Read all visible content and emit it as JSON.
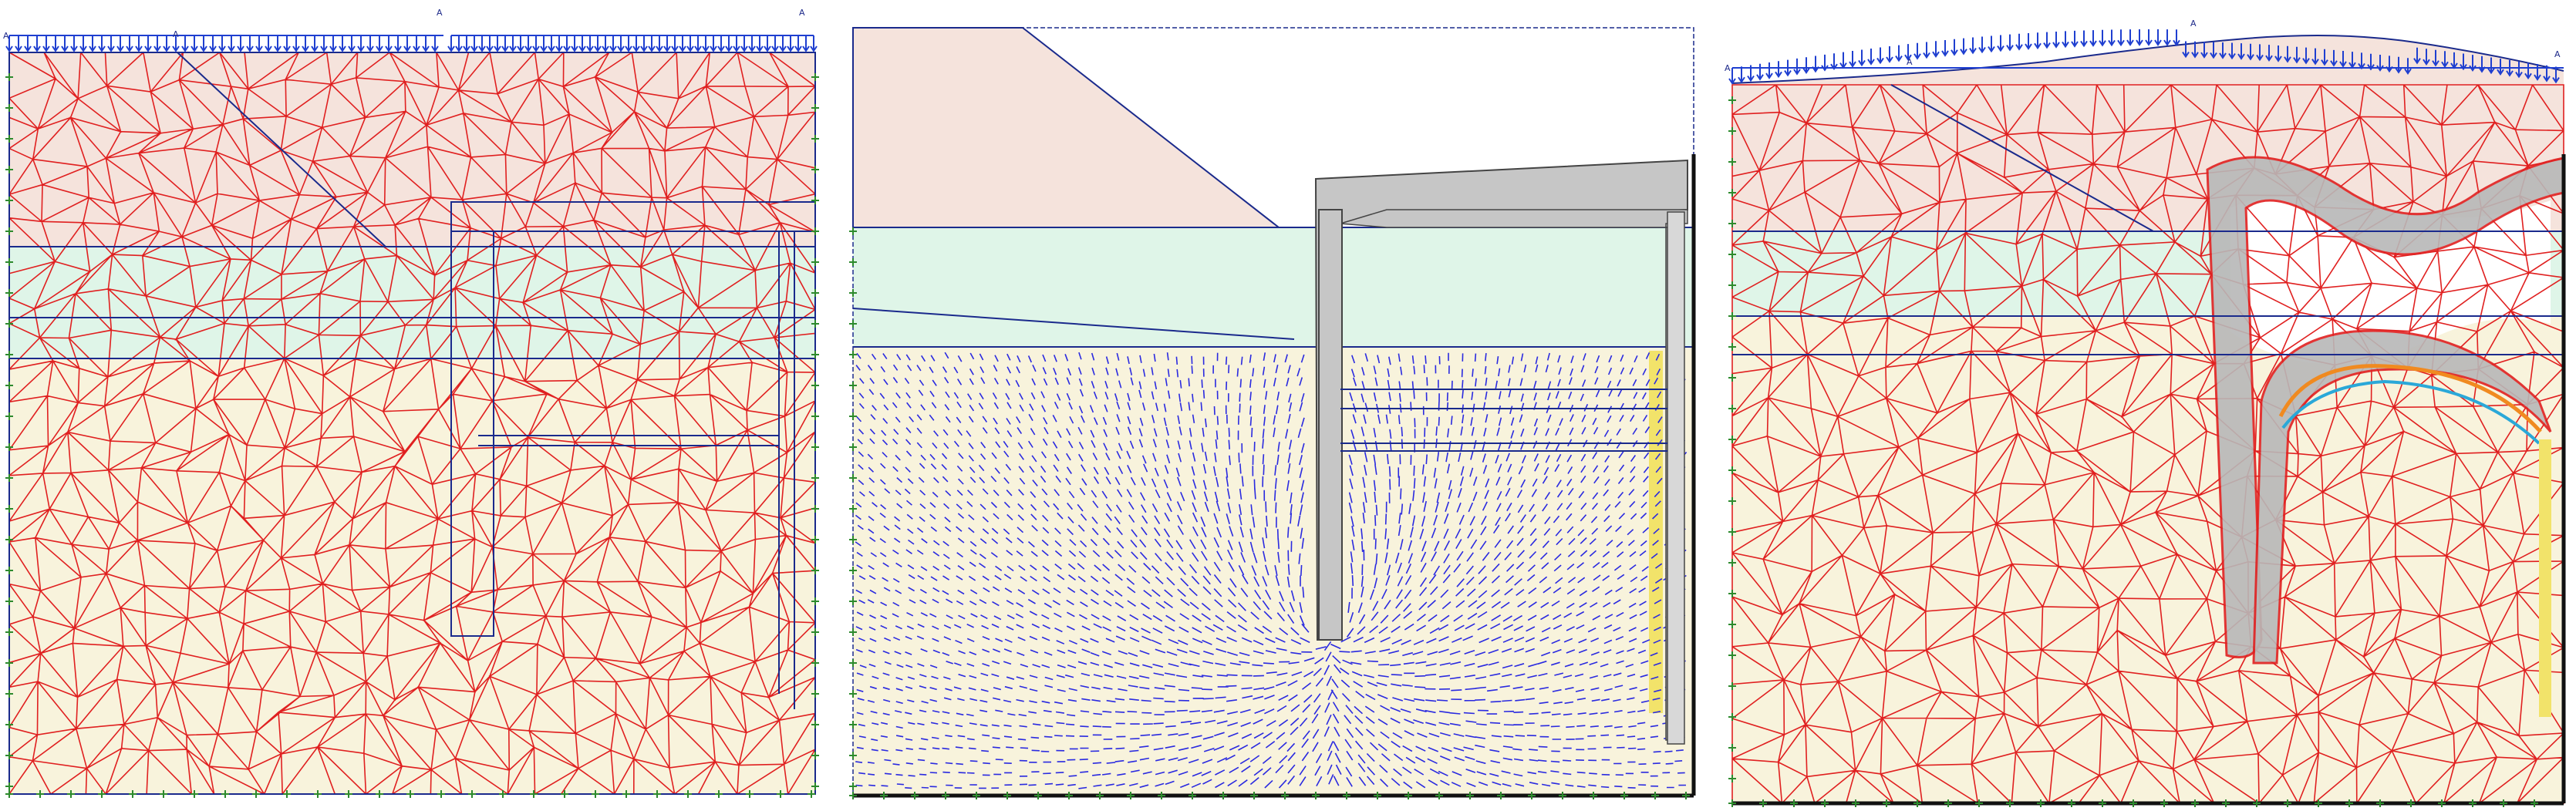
{
  "panels": [
    {
      "id": "mesh-panel",
      "point_marks": [
        "A",
        "A",
        "A",
        "A"
      ]
    },
    {
      "id": "flow-panel",
      "point_marks": []
    },
    {
      "id": "deformed-panel",
      "point_marks": [
        "A",
        "A",
        "A",
        "A"
      ]
    }
  ],
  "colors": {
    "mesh": "#e02020",
    "boundary": "#1a2a8c",
    "load_arrow": "#1f3fd0",
    "clay_layer": "#f5e3dc",
    "sand_layer": "#dff5e8",
    "deep_layer": "#f8f3dc",
    "structure": "#c6c6c6",
    "flow_arrow": "#2a2ae0",
    "fixity": "#2d8a2d",
    "yellow_zone": "#f2e36a",
    "cyan_line": "#2aa8d8",
    "orange_band": "#f08a20"
  },
  "icons": {
    "load": "distributed-load-arrows",
    "support": "fixity-symbols",
    "flow": "flow-arrows"
  }
}
